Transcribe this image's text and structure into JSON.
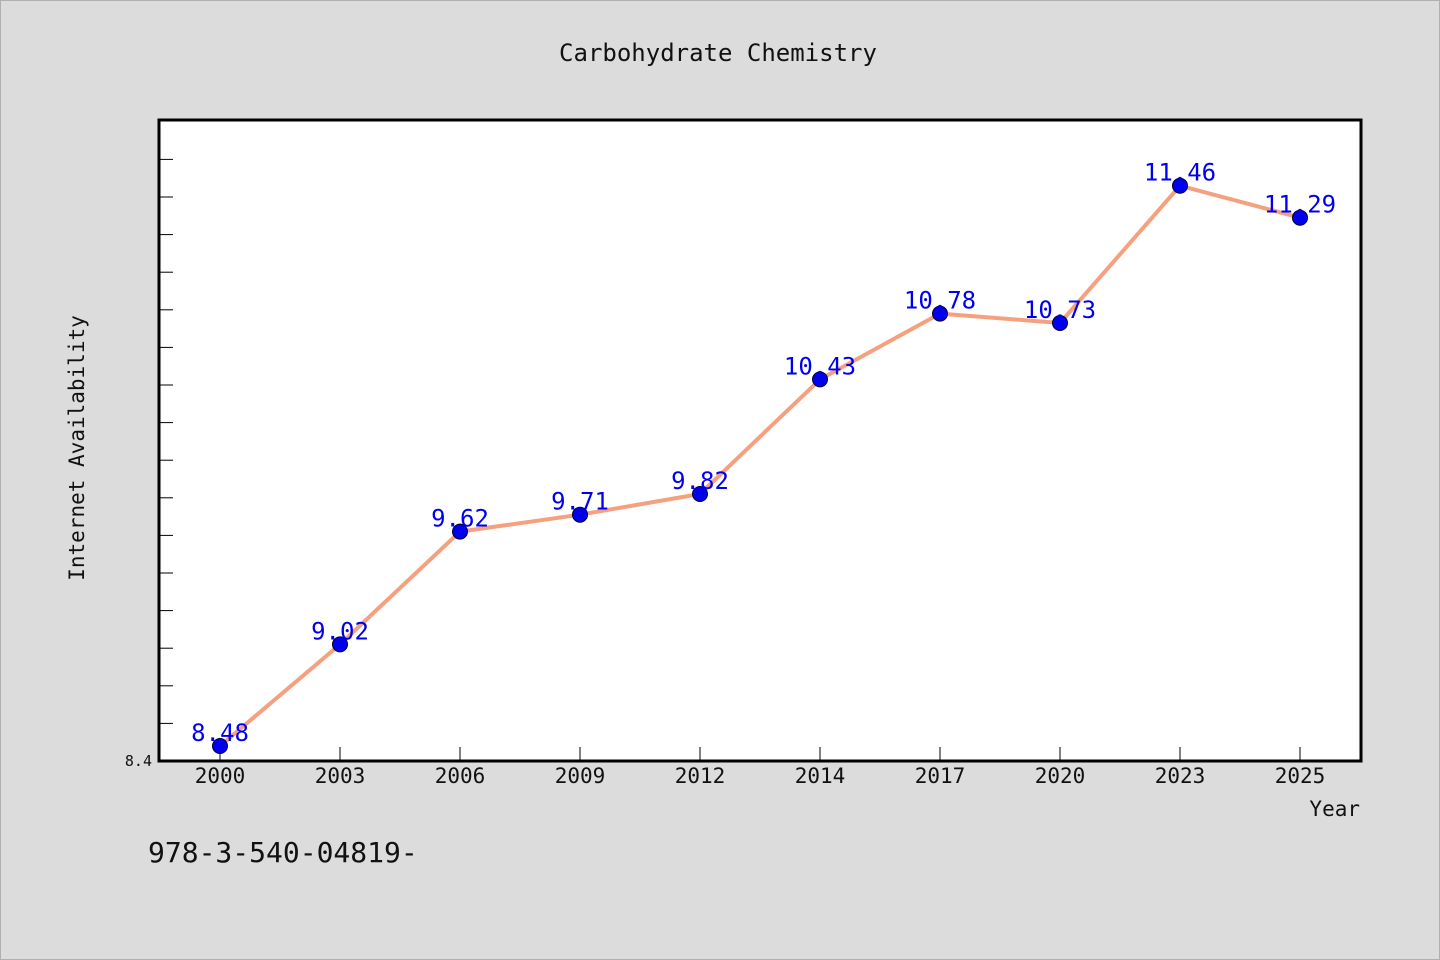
{
  "chart_data": {
    "type": "line",
    "title": "Carbohydrate Chemistry",
    "xlabel": "Year",
    "ylabel": "Internet Availability",
    "categories": [
      "2000",
      "2003",
      "2006",
      "2009",
      "2012",
      "2014",
      "2017",
      "2020",
      "2023",
      "2025"
    ],
    "series": [
      {
        "values": [
          8.48,
          9.02,
          9.62,
          9.71,
          9.82,
          10.43,
          10.78,
          10.73,
          11.46,
          11.29
        ]
      }
    ],
    "data_labels": [
      "8.48",
      "9.02",
      "9.62",
      "9.71",
      "9.82",
      "10.43",
      "10.78",
      "10.73",
      "11.46",
      "11.29"
    ],
    "y_tick_labels": [
      "8.4"
    ],
    "ylim": [
      8.4,
      11.8
    ],
    "grid": false,
    "line_color": "#f5a07f",
    "marker_color": "#0000ee",
    "label_color": "#0000ee",
    "plot_background": "#ffffff",
    "figure_background": "#dcdcdc"
  },
  "footer_text": "978-3-540-04819-"
}
